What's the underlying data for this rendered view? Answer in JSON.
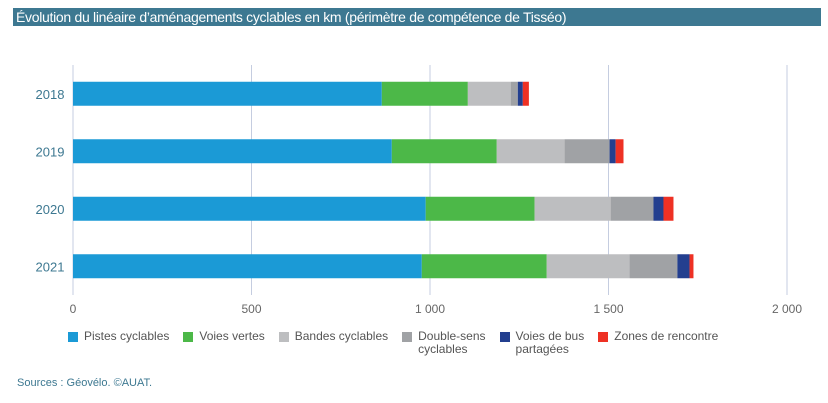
{
  "title": "Évolution du linéaire d’aménagements cyclables en km (périmètre de compétence de Tisséo)",
  "sources": "Sources : Géovélo. ©AUAT.",
  "chart_data": {
    "type": "bar",
    "orientation": "horizontal",
    "stacked": true,
    "categories": [
      "2018",
      "2019",
      "2020",
      "2021"
    ],
    "xlim": [
      0,
      2000
    ],
    "xticks": [
      0,
      500,
      1000,
      1500,
      2000
    ],
    "xtick_labels": [
      "0",
      "500",
      "1 000",
      "1 500",
      "2 000"
    ],
    "grid": true,
    "legend": "bottom",
    "series": [
      {
        "name": "Pistes cyclables",
        "color": "#1b9ad6",
        "values": [
          865,
          893,
          988,
          977
        ]
      },
      {
        "name": "Voies vertes",
        "color": "#4cb848",
        "values": [
          241,
          294,
          305,
          350
        ]
      },
      {
        "name": "Bandes cyclables",
        "color": "#bdbec0",
        "values": [
          120,
          190,
          213,
          232
        ]
      },
      {
        "name": "Double-sens\ncyclables",
        "color": "#a0a2a5",
        "values": [
          20,
          126,
          120,
          134
        ]
      },
      {
        "name": "Voies de bus\npartagées",
        "color": "#233f8f",
        "values": [
          14,
          17,
          28,
          34
        ]
      },
      {
        "name": "Zones de rencontre",
        "color": "#ee3124",
        "values": [
          17,
          22,
          28,
          11
        ]
      }
    ]
  }
}
